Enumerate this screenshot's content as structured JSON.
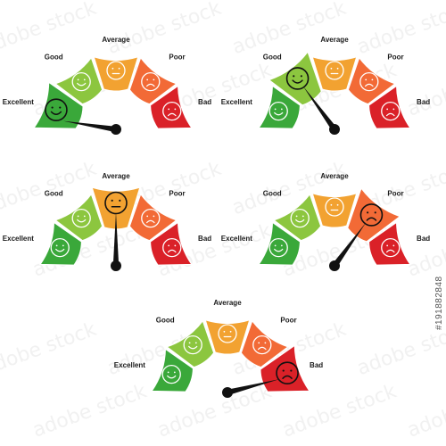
{
  "labels": [
    "Excellent",
    "Good",
    "Average",
    "Poor",
    "Bad"
  ],
  "colors": [
    "#3aa83a",
    "#8cc63f",
    "#f2a231",
    "#f26a36",
    "#da2128"
  ],
  "faces": [
    "smile",
    "smile",
    "neutral",
    "frown",
    "frown"
  ],
  "icons": [
    "smile-face-icon",
    "smile-face-icon",
    "neutral-face-icon",
    "frown-face-icon",
    "frown-face-icon"
  ],
  "gauges": [
    {
      "selected": 0,
      "needle_fraction": 0.05
    },
    {
      "selected": 1,
      "needle_fraction": 0.3
    },
    {
      "selected": 2,
      "needle_fraction": 0.5
    },
    {
      "selected": 3,
      "needle_fraction": 0.7
    },
    {
      "selected": 4,
      "needle_fraction": 0.92
    }
  ],
  "watermark": "adobe stock",
  "stock_id": "#191882848"
}
